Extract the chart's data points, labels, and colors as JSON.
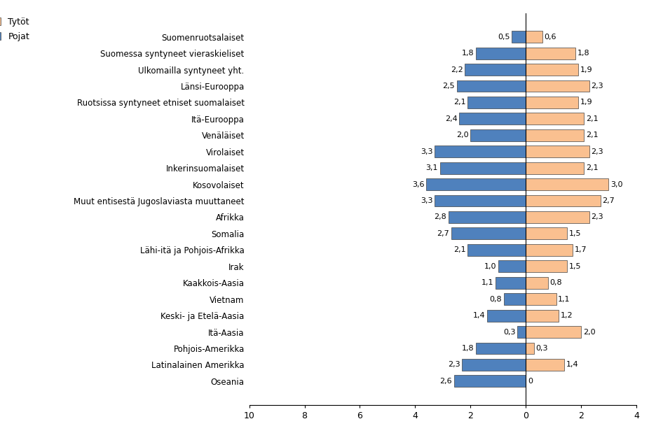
{
  "categories": [
    "Suomenruotsalaiset",
    "Suomessa syntyneet vieraskieliset",
    "Ulkomailla syntyneet yht.",
    "Länsi-Eurooppa",
    "Ruotsissa syntyneet etniset suomalaiset",
    "Itä-Eurooppa",
    "Venäläiset",
    "Virolaiset",
    "Inkerinsuomalaiset",
    "Kosovolaiset",
    "Muut entisestä Jugoslaviasta muuttaneet",
    "Afrikka",
    "Somalia",
    "Lähi-itä ja Pohjois-Afrikka",
    "Irak",
    "Kaakkois-Aasia",
    "Vietnam",
    "Keski- ja Etelä-Aasia",
    "Itä-Aasia",
    "Pohjois-Amerikka",
    "Latinalainen Amerikka",
    "Oseania"
  ],
  "pojat": [
    0.5,
    1.8,
    2.2,
    2.5,
    2.1,
    2.4,
    2.0,
    3.3,
    3.1,
    3.6,
    3.3,
    2.8,
    2.7,
    2.1,
    1.0,
    1.1,
    0.8,
    1.4,
    0.3,
    1.8,
    2.3,
    2.6
  ],
  "tyto": [
    0.6,
    1.8,
    1.9,
    2.3,
    1.9,
    2.1,
    2.1,
    2.3,
    2.1,
    3.0,
    2.7,
    2.3,
    1.5,
    1.7,
    1.5,
    0.8,
    1.1,
    1.2,
    2.0,
    0.3,
    1.4,
    0.0
  ],
  "pojat_color": "#4F81BD",
  "tyto_color": "#FAC090",
  "legend_tyto": "Tytöt",
  "legend_pojat": "Pojat",
  "background_color": "#ffffff"
}
